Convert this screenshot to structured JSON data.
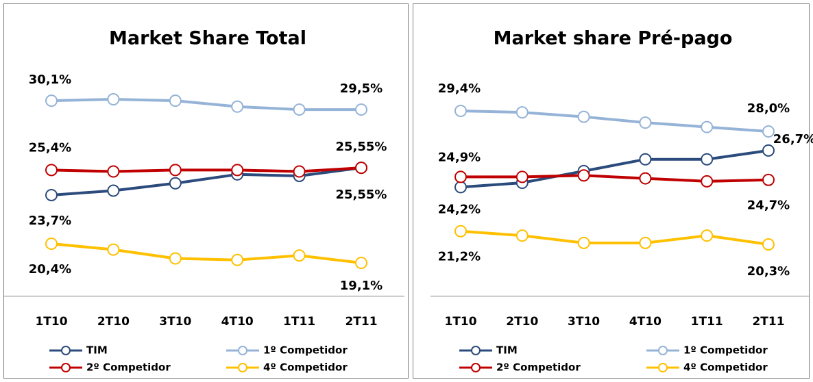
{
  "chart_data": [
    {
      "type": "line",
      "title": "Market Share Total",
      "categories": [
        "1T10",
        "2T10",
        "3T10",
        "4T10",
        "1T11",
        "2T11"
      ],
      "series": [
        {
          "name": "TIM",
          "color": "#2b4b7c",
          "values": [
            23.7,
            24.0,
            24.5,
            25.1,
            25.0,
            25.55
          ],
          "value_labels": [
            "23,7%",
            null,
            null,
            null,
            null,
            "25,55%"
          ]
        },
        {
          "name": "1º Competidor",
          "color": "#95b3d7",
          "values": [
            30.1,
            30.2,
            30.1,
            29.7,
            29.5,
            29.5
          ],
          "value_labels": [
            "30,1%",
            null,
            null,
            null,
            null,
            "29,5%"
          ]
        },
        {
          "name": "2º Competidor",
          "color": "#c00000",
          "values": [
            25.4,
            25.3,
            25.4,
            25.4,
            25.3,
            25.55
          ],
          "value_labels": [
            "25,4%",
            null,
            null,
            null,
            null,
            "25,55%"
          ]
        },
        {
          "name": "4º Competidor",
          "color": "#ffc000",
          "values": [
            20.4,
            20.0,
            19.4,
            19.3,
            19.6,
            19.1
          ],
          "value_labels": [
            "20,4%",
            null,
            null,
            null,
            null,
            "19,1%"
          ]
        }
      ]
    },
    {
      "type": "line",
      "title": "Market share Pré-pago",
      "categories": [
        "1T10",
        "2T10",
        "3T10",
        "4T10",
        "1T11",
        "2T11"
      ],
      "series": [
        {
          "name": "TIM",
          "color": "#2b4b7c",
          "values": [
            24.2,
            24.5,
            25.3,
            26.1,
            26.1,
            26.7
          ],
          "value_labels": [
            "24,2%",
            null,
            null,
            null,
            null,
            "26,7%"
          ]
        },
        {
          "name": "1º Competidor",
          "color": "#95b3d7",
          "values": [
            29.4,
            29.3,
            29.0,
            28.6,
            28.3,
            28.0
          ],
          "value_labels": [
            "29,4%",
            null,
            null,
            null,
            null,
            "28,0%"
          ]
        },
        {
          "name": "2º Competidor",
          "color": "#c00000",
          "values": [
            24.9,
            24.9,
            25.0,
            24.8,
            24.6,
            24.7
          ],
          "value_labels": [
            "24,9%",
            null,
            null,
            null,
            null,
            "24,7%"
          ]
        },
        {
          "name": "4º Competidor",
          "color": "#ffc000",
          "values": [
            21.2,
            20.9,
            20.4,
            20.4,
            20.9,
            20.3
          ],
          "value_labels": [
            "21,2%",
            null,
            null,
            null,
            null,
            "20,3%"
          ]
        }
      ]
    }
  ]
}
